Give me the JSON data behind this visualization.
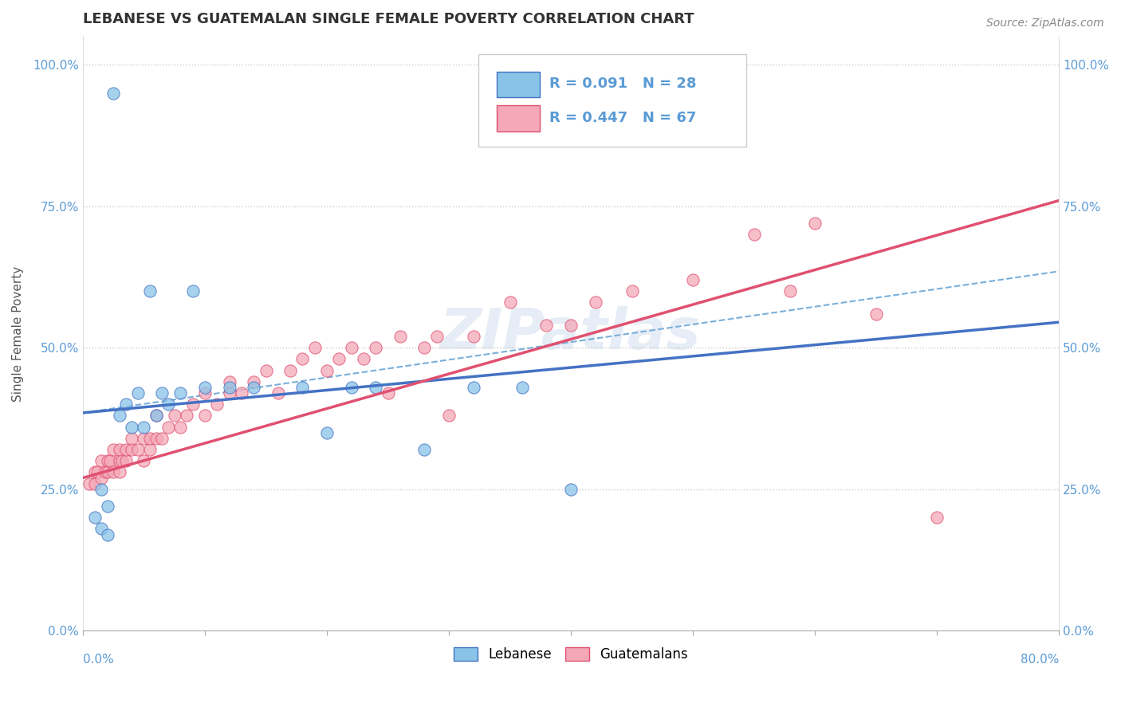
{
  "title": "LEBANESE VS GUATEMALAN SINGLE FEMALE POVERTY CORRELATION CHART",
  "source": "Source: ZipAtlas.com",
  "ylabel": "Single Female Poverty",
  "ytick_labels": [
    "0.0%",
    "25.0%",
    "50.0%",
    "75.0%",
    "100.0%"
  ],
  "ytick_values": [
    0.0,
    0.25,
    0.5,
    0.75,
    1.0
  ],
  "xlim": [
    0.0,
    0.8
  ],
  "ylim": [
    0.0,
    1.05
  ],
  "legend_label1": "Lebanese",
  "legend_label2": "Guatemalans",
  "R1": 0.091,
  "N1": 28,
  "R2": 0.447,
  "N2": 67,
  "color_lebanese": "#89c4e8",
  "color_guatemalan": "#f4a8b8",
  "color_line1": "#4472c4",
  "color_line2": "#e05070",
  "color_dash": "#7aafda",
  "watermark": "ZIPatlas",
  "leb_line_x0": 0.0,
  "leb_line_y0": 0.385,
  "leb_line_x1": 0.8,
  "leb_line_y1": 0.545,
  "guat_line_x0": 0.0,
  "guat_line_y0": 0.27,
  "guat_line_x1": 0.8,
  "guat_line_y1": 0.76,
  "dash_line_x0": 0.0,
  "dash_line_y0": 0.385,
  "dash_line_x1": 0.8,
  "dash_line_y1": 0.635,
  "lebanese_x": [
    0.01,
    0.015,
    0.015,
    0.02,
    0.02,
    0.025,
    0.03,
    0.035,
    0.04,
    0.045,
    0.05,
    0.055,
    0.06,
    0.065,
    0.07,
    0.08,
    0.09,
    0.1,
    0.12,
    0.14,
    0.18,
    0.2,
    0.22,
    0.24,
    0.28,
    0.32,
    0.36,
    0.4
  ],
  "lebanese_y": [
    0.2,
    0.25,
    0.18,
    0.22,
    0.17,
    0.95,
    0.38,
    0.4,
    0.36,
    0.42,
    0.36,
    0.6,
    0.38,
    0.42,
    0.4,
    0.42,
    0.6,
    0.43,
    0.43,
    0.43,
    0.43,
    0.35,
    0.43,
    0.43,
    0.32,
    0.43,
    0.43,
    0.25
  ],
  "guatemalan_x": [
    0.005,
    0.01,
    0.01,
    0.012,
    0.015,
    0.015,
    0.018,
    0.02,
    0.02,
    0.022,
    0.025,
    0.025,
    0.03,
    0.03,
    0.03,
    0.032,
    0.035,
    0.035,
    0.04,
    0.04,
    0.045,
    0.05,
    0.05,
    0.055,
    0.055,
    0.06,
    0.06,
    0.065,
    0.07,
    0.075,
    0.08,
    0.085,
    0.09,
    0.1,
    0.1,
    0.11,
    0.12,
    0.12,
    0.13,
    0.14,
    0.15,
    0.16,
    0.17,
    0.18,
    0.19,
    0.2,
    0.21,
    0.22,
    0.23,
    0.24,
    0.25,
    0.26,
    0.28,
    0.29,
    0.3,
    0.32,
    0.35,
    0.38,
    0.4,
    0.42,
    0.45,
    0.5,
    0.55,
    0.58,
    0.6,
    0.65,
    0.7
  ],
  "guatemalan_y": [
    0.26,
    0.26,
    0.28,
    0.28,
    0.27,
    0.3,
    0.28,
    0.28,
    0.3,
    0.3,
    0.28,
    0.32,
    0.28,
    0.3,
    0.32,
    0.3,
    0.3,
    0.32,
    0.32,
    0.34,
    0.32,
    0.3,
    0.34,
    0.32,
    0.34,
    0.34,
    0.38,
    0.34,
    0.36,
    0.38,
    0.36,
    0.38,
    0.4,
    0.38,
    0.42,
    0.4,
    0.42,
    0.44,
    0.42,
    0.44,
    0.46,
    0.42,
    0.46,
    0.48,
    0.5,
    0.46,
    0.48,
    0.5,
    0.48,
    0.5,
    0.42,
    0.52,
    0.5,
    0.52,
    0.38,
    0.52,
    0.58,
    0.54,
    0.54,
    0.58,
    0.6,
    0.62,
    0.7,
    0.6,
    0.72,
    0.56,
    0.2
  ]
}
